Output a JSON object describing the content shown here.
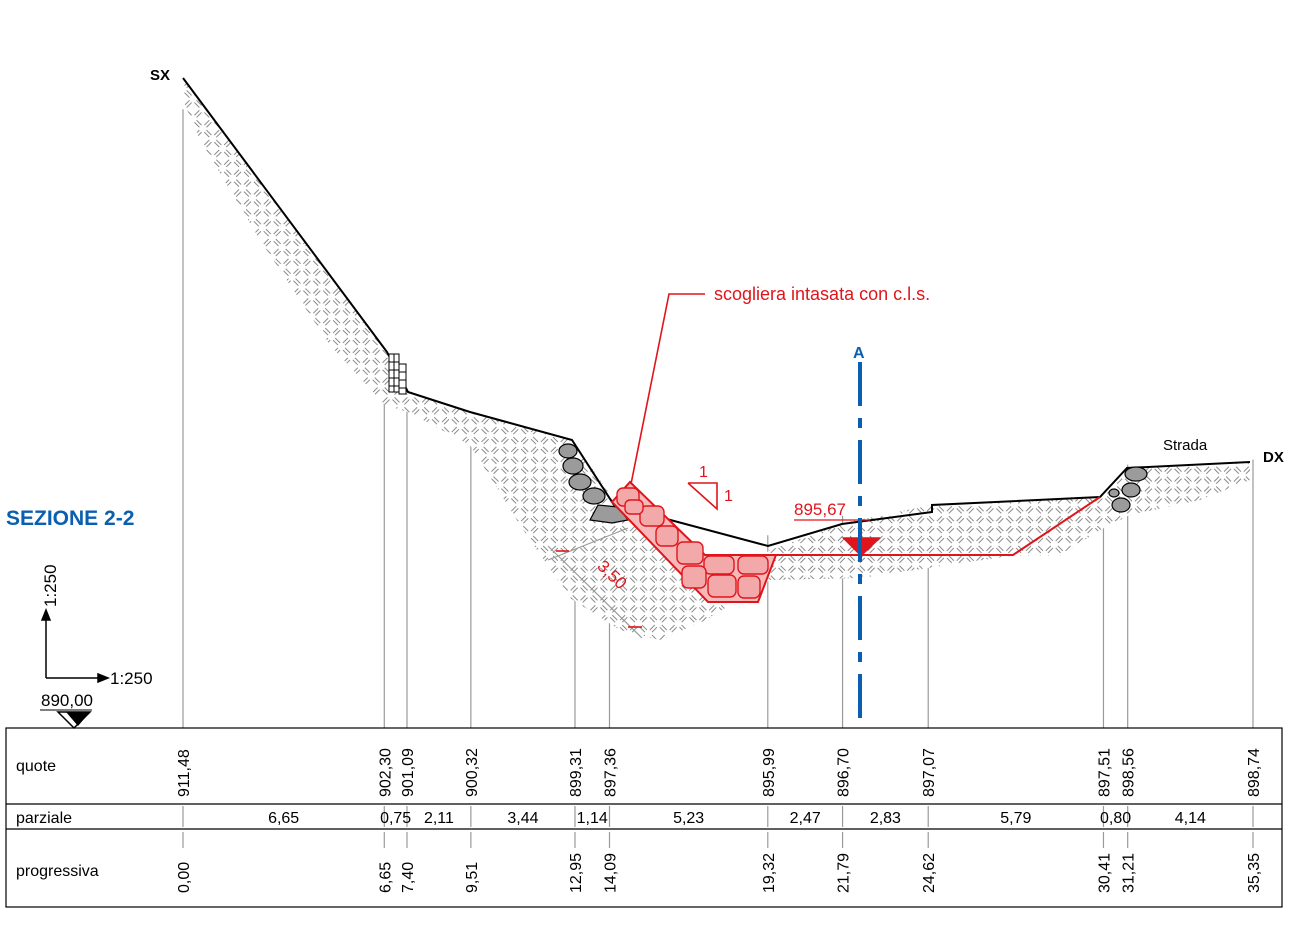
{
  "title": "SEZIONE 2-2",
  "labels": {
    "left_bank": "SX",
    "right_bank": "DX",
    "road": "Strada",
    "section_marker": "A",
    "callout": "scogliera intasata con c.l.s.",
    "water_level": "895,67",
    "slope_v": "1",
    "slope_h": "1",
    "thickness": "3,50",
    "scale_vertical": "1:250",
    "scale_horizontal": "1:250",
    "datum": "890,00"
  },
  "table": {
    "row_labels": [
      "quote",
      "parziale",
      "progressiva"
    ],
    "quote": [
      "911,48",
      "902,30",
      "901,09",
      "900,32",
      "899,31",
      "897,36",
      "895,99",
      "896,70",
      "897,07",
      "897,51",
      "898,56",
      "898,74"
    ],
    "parziale": [
      "6,65",
      "0,75",
      "2,11",
      "3,44",
      "1,14",
      "5,23",
      "2,47",
      "2,83",
      "5,79",
      "0,80",
      "4,14"
    ],
    "progressiva": [
      "0,00",
      "6,65",
      "7,40",
      "9,51",
      "12,95",
      "14,09",
      "19,32",
      "21,79",
      "24,62",
      "30,41",
      "31,21",
      "35,35"
    ]
  },
  "colors": {
    "ground": "#000000",
    "intervention": "#e0151b",
    "rock_fill": "#f6b8b8",
    "section_line": "#0b5fb0",
    "title": "#0b5fb0",
    "grid": "#9a9a9a",
    "hatch": "#8a8a8a"
  }
}
